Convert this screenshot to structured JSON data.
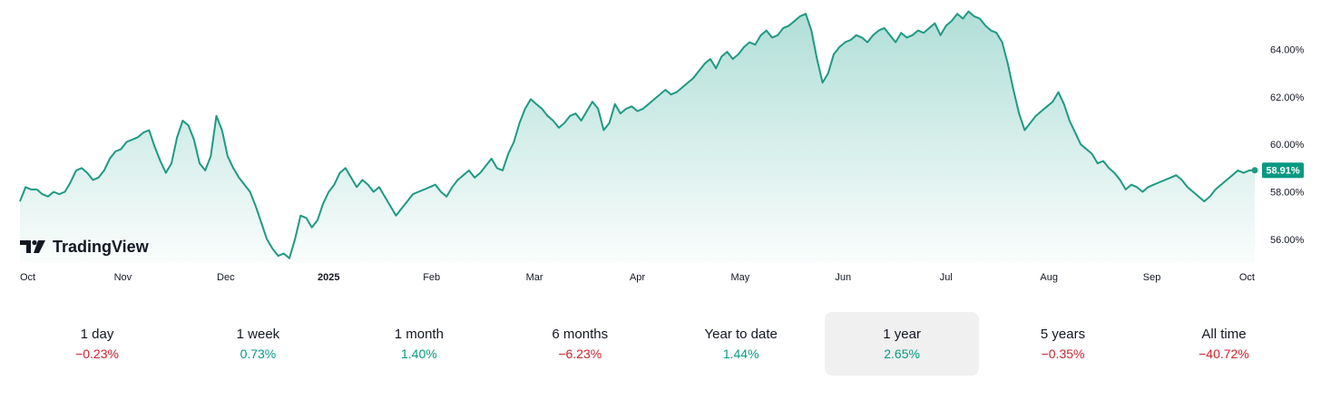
{
  "brand": {
    "name": "TradingView",
    "icon": "tradingview-logo-icon"
  },
  "colors": {
    "line": "#1e9a82",
    "fill": "#089981",
    "positive": "#089981",
    "negative": "#c9242f",
    "selected_bg": "#f0f0f0"
  },
  "chart_data": {
    "type": "area",
    "title": "",
    "xlabel": "",
    "ylabel": "",
    "x_ticks": [
      {
        "label": "Oct",
        "bold": false
      },
      {
        "label": "Nov",
        "bold": false
      },
      {
        "label": "Dec",
        "bold": false
      },
      {
        "label": "2025",
        "bold": true
      },
      {
        "label": "Feb",
        "bold": false
      },
      {
        "label": "Mar",
        "bold": false
      },
      {
        "label": "Apr",
        "bold": false
      },
      {
        "label": "May",
        "bold": false
      },
      {
        "label": "Jun",
        "bold": false
      },
      {
        "label": "Jul",
        "bold": false
      },
      {
        "label": "Aug",
        "bold": false
      },
      {
        "label": "Sep",
        "bold": false
      },
      {
        "label": "Oct",
        "bold": false
      }
    ],
    "y_ticks": [
      56,
      58,
      60,
      62,
      64
    ],
    "y_tick_labels": [
      "56.00%",
      "58.00%",
      "60.00%",
      "62.00%",
      "64.00%"
    ],
    "ylim": [
      55.0,
      65.7
    ],
    "last_value_label": "58.91%",
    "series": [
      {
        "values": [
          57.6,
          58.2,
          58.1,
          58.1,
          57.9,
          57.8,
          58.0,
          57.9,
          58.0,
          58.4,
          58.9,
          59.0,
          58.8,
          58.5,
          58.6,
          58.9,
          59.4,
          59.7,
          59.8,
          60.1,
          60.2,
          60.3,
          60.5,
          60.6,
          59.9,
          59.3,
          58.8,
          59.2,
          60.3,
          61.0,
          60.8,
          60.2,
          59.2,
          58.9,
          59.5,
          61.2,
          60.6,
          59.5,
          59.0,
          58.6,
          58.3,
          58.0,
          57.4,
          56.7,
          56.0,
          55.6,
          55.3,
          55.4,
          55.2,
          56.0,
          57.0,
          56.9,
          56.5,
          56.8,
          57.5,
          58.0,
          58.3,
          58.8,
          59.0,
          58.6,
          58.2,
          58.5,
          58.3,
          58.0,
          58.2,
          57.8,
          57.4,
          57.0,
          57.3,
          57.6,
          57.9,
          58.0,
          58.1,
          58.2,
          58.3,
          58.0,
          57.8,
          58.2,
          58.5,
          58.7,
          58.9,
          58.6,
          58.8,
          59.1,
          59.4,
          59.0,
          58.9,
          59.6,
          60.1,
          60.9,
          61.5,
          61.9,
          61.7,
          61.5,
          61.2,
          61.0,
          60.7,
          60.9,
          61.2,
          61.3,
          61.0,
          61.4,
          61.8,
          61.5,
          60.6,
          60.9,
          61.7,
          61.3,
          61.5,
          61.6,
          61.4,
          61.5,
          61.7,
          61.9,
          62.1,
          62.3,
          62.1,
          62.2,
          62.4,
          62.6,
          62.8,
          63.1,
          63.4,
          63.6,
          63.2,
          63.7,
          63.9,
          63.6,
          63.8,
          64.1,
          64.3,
          64.2,
          64.6,
          64.8,
          64.5,
          64.6,
          64.9,
          65.0,
          65.2,
          65.4,
          65.5,
          64.8,
          63.6,
          62.6,
          63.0,
          63.8,
          64.1,
          64.3,
          64.4,
          64.6,
          64.5,
          64.3,
          64.6,
          64.8,
          64.9,
          64.6,
          64.3,
          64.7,
          64.5,
          64.6,
          64.8,
          64.7,
          64.9,
          65.1,
          64.6,
          65.0,
          65.2,
          65.5,
          65.3,
          65.6,
          65.4,
          65.3,
          65.0,
          64.8,
          64.7,
          64.3,
          63.4,
          62.3,
          61.3,
          60.6,
          60.9,
          61.2,
          61.4,
          61.6,
          61.8,
          62.2,
          61.7,
          61.0,
          60.5,
          60.0,
          59.8,
          59.6,
          59.2,
          59.3,
          59.0,
          58.8,
          58.5,
          58.1,
          58.3,
          58.2,
          58.0,
          58.2,
          58.3,
          58.4,
          58.5,
          58.6,
          58.7,
          58.5,
          58.2,
          58.0,
          57.8,
          57.6,
          57.8,
          58.1,
          58.3,
          58.5,
          58.7,
          58.9,
          58.8,
          58.9,
          58.91
        ]
      }
    ]
  },
  "periods": [
    {
      "label": "1 day",
      "value": "−0.23%",
      "sign": "neg",
      "selected": false
    },
    {
      "label": "1 week",
      "value": "0.73%",
      "sign": "pos",
      "selected": false
    },
    {
      "label": "1 month",
      "value": "1.40%",
      "sign": "pos",
      "selected": false
    },
    {
      "label": "6 months",
      "value": "−6.23%",
      "sign": "neg",
      "selected": false
    },
    {
      "label": "Year to date",
      "value": "1.44%",
      "sign": "pos",
      "selected": false
    },
    {
      "label": "1 year",
      "value": "2.65%",
      "sign": "pos",
      "selected": true
    },
    {
      "label": "5 years",
      "value": "−0.35%",
      "sign": "neg",
      "selected": false
    },
    {
      "label": "All time",
      "value": "−40.72%",
      "sign": "neg",
      "selected": false
    }
  ]
}
